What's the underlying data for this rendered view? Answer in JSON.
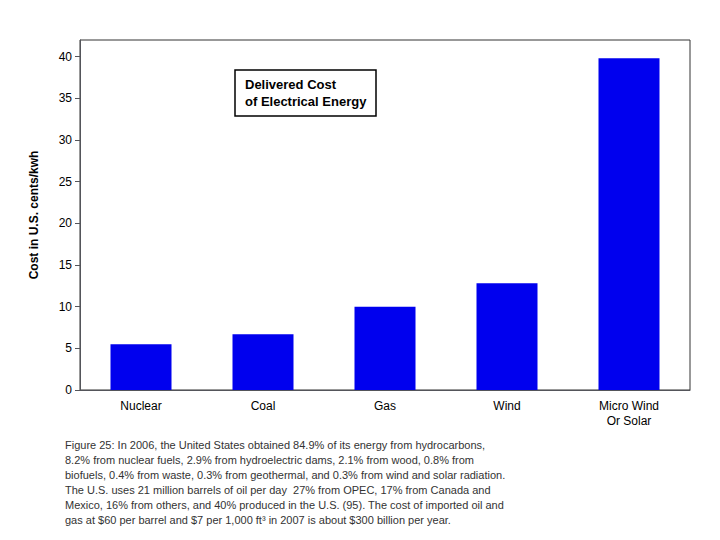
{
  "chart_data": {
    "type": "bar",
    "categories": [
      "Nuclear",
      "Coal",
      "Gas",
      "Wind",
      "Micro Wind\nOr Solar"
    ],
    "values": [
      5.5,
      6.7,
      10.0,
      12.8,
      39.8
    ],
    "color": "#0000ee",
    "ylabel": "Cost in U.S. cents/kwh",
    "ylim": [
      0,
      42
    ],
    "yticks": [
      0,
      5,
      10,
      15,
      20,
      25,
      30,
      35,
      40
    ],
    "grid": false,
    "annotations": [
      "Delivered Cost\nof Electrical Energy",
      "Figure 25: In 2006, the United States obtained 84.9% of its energy from hydrocarbons,\n8.2% from nuclear fuels, 2.9% from hydroelectric dams, 2.1% from wood, 0.8% from\nbiofuels, 0.4% from waste, 0.3% from geothermal, and 0.3% from wind and solar radiation.\nThe U.S. uses 21 million barrels of oil per day  27% from OPEC, 17% from Canada and\nMexico, 16% from others, and 40% produced in the U.S. (95). The cost of imported oil and\ngas at $60 per barrel and $7 per 1,000 ft³ in 2007 is about $300 billion per year."
    ]
  }
}
